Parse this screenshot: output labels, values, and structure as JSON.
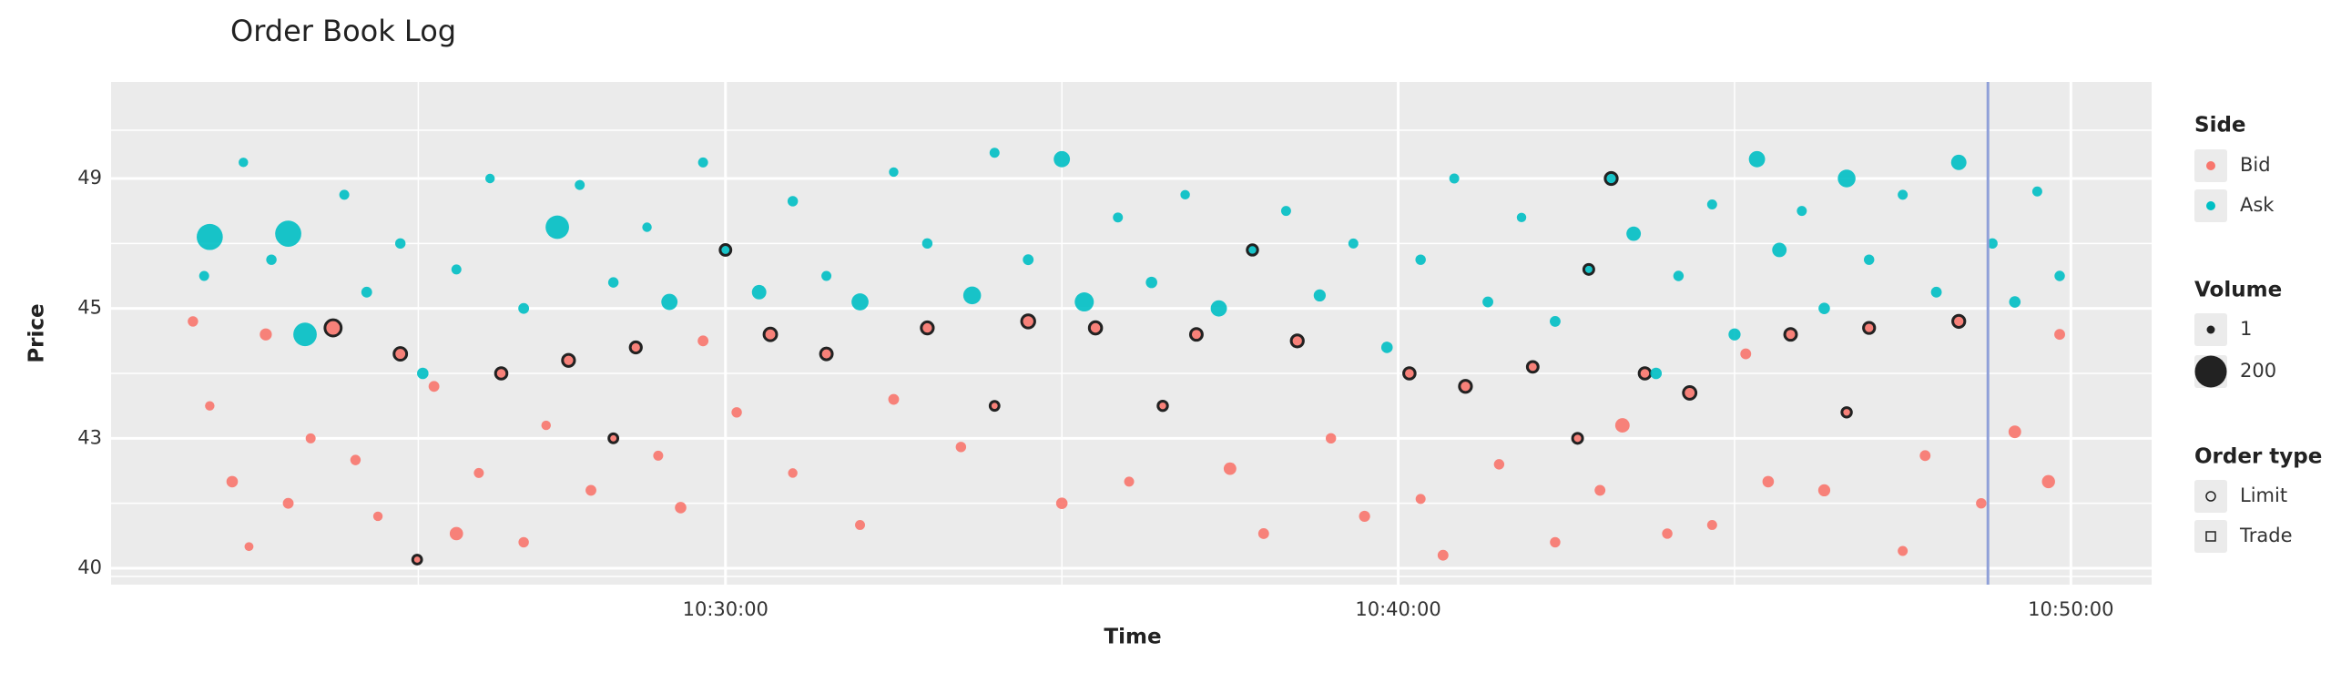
{
  "chart_data": {
    "type": "scatter",
    "title": "Order Book Log",
    "x_label": "Time",
    "y_label": "Price",
    "xlim": [
      "10:20:52",
      "10:51:12"
    ],
    "xticks": [
      "10:30:00",
      "10:40:00",
      "10:50:00"
    ],
    "ylim": [
      39.6,
      52
    ],
    "yticks": [
      40,
      43,
      45,
      49
    ],
    "grid": true,
    "vline": "10:48:46",
    "vline_color": "#8fa0d8",
    "legend": {
      "side_title": "Side",
      "volume_title": "Volume",
      "volume_keys": [
        1,
        200
      ],
      "order_title": "Order type",
      "order_types": [
        "Limit",
        "Trade"
      ]
    },
    "series": [
      {
        "name": "Bid",
        "color": "#f8766d",
        "x": [
          "10:22:05",
          "10:22:20",
          "10:22:40",
          "10:22:55",
          "10:23:10",
          "10:23:30",
          "10:23:50",
          "10:24:10",
          "10:24:30",
          "10:24:50",
          "10:25:10",
          "10:25:25",
          "10:25:40",
          "10:26:00",
          "10:26:20",
          "10:26:40",
          "10:27:00",
          "10:27:20",
          "10:27:40",
          "10:28:00",
          "10:28:20",
          "10:28:40",
          "10:29:00",
          "10:29:20",
          "10:29:40",
          "10:30:10",
          "10:30:40",
          "10:31:00",
          "10:31:30",
          "10:32:00",
          "10:32:30",
          "10:33:00",
          "10:33:30",
          "10:34:00",
          "10:34:30",
          "10:35:00",
          "10:35:30",
          "10:36:00",
          "10:36:30",
          "10:37:00",
          "10:37:30",
          "10:38:00",
          "10:38:30",
          "10:39:00",
          "10:39:30",
          "10:40:10",
          "10:40:20",
          "10:40:40",
          "10:41:00",
          "10:41:30",
          "10:42:00",
          "10:42:20",
          "10:42:40",
          "10:43:00",
          "10:43:20",
          "10:43:40",
          "10:44:00",
          "10:44:20",
          "10:44:40",
          "10:45:10",
          "10:45:30",
          "10:45:50",
          "10:46:20",
          "10:46:40",
          "10:47:00",
          "10:47:30",
          "10:47:50",
          "10:48:20",
          "10:48:40",
          "10:49:10",
          "10:49:40",
          "10:49:50"
        ],
        "values": [
          44.8,
          43.5,
          42.0,
          40.5,
          44.6,
          41.5,
          43.0,
          44.7,
          42.5,
          41.2,
          44.3,
          40.2,
          43.8,
          40.8,
          42.2,
          44.0,
          40.6,
          43.2,
          44.2,
          41.8,
          43.0,
          44.4,
          42.6,
          41.4,
          44.5,
          43.4,
          44.6,
          42.2,
          44.3,
          41.0,
          43.6,
          44.7,
          42.8,
          43.5,
          44.8,
          41.5,
          44.7,
          42.0,
          43.5,
          44.6,
          42.3,
          40.8,
          44.5,
          43.0,
          41.2,
          44.0,
          41.6,
          40.3,
          43.8,
          42.4,
          44.1,
          40.6,
          43.0,
          41.8,
          43.2,
          44.0,
          40.8,
          43.7,
          41.0,
          44.3,
          42.0,
          44.6,
          41.8,
          43.4,
          44.7,
          40.4,
          42.6,
          44.8,
          41.5,
          43.1,
          42.0,
          44.6
        ],
        "sizes": [
          5,
          3,
          8,
          2,
          10,
          6,
          4,
          30,
          5,
          3,
          12,
          2,
          6,
          15,
          4,
          8,
          5,
          3,
          10,
          6,
          2,
          7,
          4,
          8,
          6,
          5,
          12,
          3,
          9,
          4,
          6,
          10,
          5,
          2,
          14,
          8,
          11,
          4,
          3,
          9,
          12,
          6,
          10,
          5,
          7,
          8,
          4,
          6,
          10,
          5,
          6,
          5,
          4,
          6,
          20,
          8,
          5,
          12,
          4,
          6,
          8,
          9,
          10,
          3,
          7,
          4,
          6,
          10,
          5,
          12,
          14,
          6
        ],
        "order_type": [
          "Limit",
          "Limit",
          "Limit",
          "Limit",
          "Limit",
          "Limit",
          "Limit",
          "Trade",
          "Limit",
          "Limit",
          "Trade",
          "Trade",
          "Limit",
          "Limit",
          "Limit",
          "Trade",
          "Limit",
          "Limit",
          "Trade",
          "Limit",
          "Trade",
          "Trade",
          "Limit",
          "Limit",
          "Limit",
          "Limit",
          "Trade",
          "Limit",
          "Trade",
          "Limit",
          "Limit",
          "Trade",
          "Limit",
          "Trade",
          "Trade",
          "Limit",
          "Trade",
          "Limit",
          "Trade",
          "Trade",
          "Limit",
          "Limit",
          "Trade",
          "Limit",
          "Limit",
          "Trade",
          "Limit",
          "Limit",
          "Trade",
          "Limit",
          "Trade",
          "Limit",
          "Trade",
          "Limit",
          "Limit",
          "Trade",
          "Limit",
          "Trade",
          "Limit",
          "Limit",
          "Limit",
          "Trade",
          "Limit",
          "Trade",
          "Trade",
          "Limit",
          "Limit",
          "Trade",
          "Limit",
          "Limit",
          "Limit",
          "Limit"
        ]
      },
      {
        "name": "Ask",
        "color": "#00bfc4",
        "x": [
          "10:22:15",
          "10:22:20",
          "10:22:50",
          "10:23:15",
          "10:23:30",
          "10:23:45",
          "10:24:20",
          "10:24:40",
          "10:25:10",
          "10:25:30",
          "10:26:00",
          "10:26:30",
          "10:27:00",
          "10:27:30",
          "10:27:50",
          "10:28:20",
          "10:28:50",
          "10:29:10",
          "10:29:40",
          "10:30:00",
          "10:30:30",
          "10:31:00",
          "10:31:30",
          "10:32:00",
          "10:32:30",
          "10:33:00",
          "10:33:40",
          "10:34:00",
          "10:34:30",
          "10:35:00",
          "10:35:20",
          "10:35:50",
          "10:36:20",
          "10:36:50",
          "10:37:20",
          "10:37:50",
          "10:38:20",
          "10:38:50",
          "10:39:20",
          "10:39:50",
          "10:40:20",
          "10:40:50",
          "10:41:20",
          "10:41:50",
          "10:42:20",
          "10:42:50",
          "10:43:10",
          "10:43:30",
          "10:43:50",
          "10:44:10",
          "10:44:40",
          "10:45:00",
          "10:45:20",
          "10:45:40",
          "10:46:00",
          "10:46:20",
          "10:46:40",
          "10:47:00",
          "10:47:30",
          "10:48:00",
          "10:48:20",
          "10:48:50",
          "10:49:10",
          "10:49:30",
          "10:49:50"
        ],
        "values": [
          46.0,
          47.2,
          49.5,
          46.5,
          47.3,
          44.6,
          48.5,
          45.5,
          47.0,
          44.0,
          46.2,
          49.0,
          45.0,
          47.5,
          48.8,
          45.8,
          47.5,
          45.2,
          49.5,
          46.8,
          45.5,
          48.3,
          46.0,
          45.2,
          49.2,
          47.0,
          45.4,
          49.8,
          46.5,
          49.6,
          45.2,
          47.8,
          45.8,
          48.5,
          45.0,
          46.8,
          48.0,
          45.4,
          47.0,
          44.4,
          46.5,
          49.0,
          45.2,
          47.8,
          44.8,
          46.2,
          49.0,
          47.3,
          44.0,
          46.0,
          48.2,
          44.6,
          49.6,
          46.8,
          48.0,
          45.0,
          49.0,
          46.5,
          48.5,
          45.5,
          49.5,
          47.0,
          45.2,
          48.6,
          46.0
        ],
        "sizes": [
          4,
          120,
          3,
          5,
          120,
          90,
          4,
          6,
          5,
          8,
          4,
          3,
          6,
          90,
          4,
          5,
          3,
          30,
          4,
          6,
          20,
          5,
          4,
          35,
          3,
          5,
          40,
          4,
          6,
          30,
          50,
          4,
          8,
          3,
          30,
          5,
          4,
          10,
          4,
          8,
          5,
          4,
          6,
          3,
          6,
          4,
          10,
          20,
          8,
          5,
          4,
          10,
          30,
          20,
          4,
          8,
          40,
          5,
          4,
          6,
          25,
          5,
          8,
          4,
          5
        ],
        "order_type": [
          "Limit",
          "Limit",
          "Limit",
          "Limit",
          "Limit",
          "Limit",
          "Limit",
          "Limit",
          "Limit",
          "Limit",
          "Limit",
          "Limit",
          "Limit",
          "Limit",
          "Limit",
          "Limit",
          "Limit",
          "Limit",
          "Limit",
          "Trade",
          "Limit",
          "Limit",
          "Limit",
          "Limit",
          "Limit",
          "Limit",
          "Limit",
          "Limit",
          "Limit",
          "Limit",
          "Limit",
          "Limit",
          "Limit",
          "Limit",
          "Limit",
          "Trade",
          "Limit",
          "Limit",
          "Limit",
          "Limit",
          "Limit",
          "Limit",
          "Limit",
          "Limit",
          "Limit",
          "Trade",
          "Trade",
          "Limit",
          "Limit",
          "Limit",
          "Limit",
          "Limit",
          "Limit",
          "Limit",
          "Limit",
          "Limit",
          "Limit",
          "Limit",
          "Limit",
          "Limit",
          "Limit",
          "Limit",
          "Limit",
          "Limit",
          "Limit"
        ]
      }
    ]
  }
}
